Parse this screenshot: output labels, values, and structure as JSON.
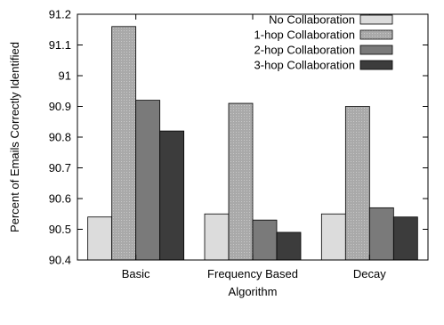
{
  "chart_data": {
    "type": "bar",
    "xlabel": "Algorithm",
    "ylabel": "Percent of Emails Correctly Identified",
    "ylim": [
      90.4,
      91.2
    ],
    "yticks": [
      "90.4",
      "90.5",
      "90.6",
      "90.7",
      "90.8",
      "90.9",
      "91",
      "91.1",
      "91.2"
    ],
    "categories": [
      "Basic",
      "Frequency Based",
      "Decay"
    ],
    "grid": false,
    "legend_position": "top-right",
    "series": [
      {
        "name": "No Collaboration",
        "values": [
          90.54,
          90.55,
          90.55
        ],
        "color": "#dcdcdc",
        "pattern": "solid"
      },
      {
        "name": "1-hop Collaboration",
        "values": [
          91.16,
          90.91,
          90.9
        ],
        "color": "#a9a9a9",
        "pattern": "dotted"
      },
      {
        "name": "2-hop Collaboration",
        "values": [
          90.92,
          90.53,
          90.57
        ],
        "color": "#7a7a7a",
        "pattern": "solid"
      },
      {
        "name": "3-hop Collaboration",
        "values": [
          90.82,
          90.49,
          90.54
        ],
        "color": "#3c3c3c",
        "pattern": "solid"
      }
    ]
  }
}
